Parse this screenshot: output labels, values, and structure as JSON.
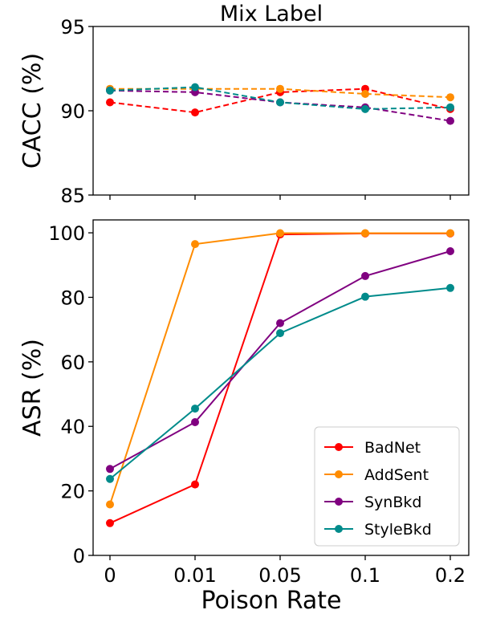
{
  "title": "Mix Label",
  "xlabel": "Poison Rate",
  "colors": {
    "BadNet": "#ff0000",
    "AddSent": "#ff8c00",
    "SynBkd": "#800080",
    "StyleBkd": "#008b8b"
  },
  "chart_data": [
    {
      "type": "line",
      "ylabel": "CACC (%)",
      "ylim": [
        85,
        95
      ],
      "yticks": [
        85,
        90,
        95
      ],
      "categories": [
        "0",
        "0.01",
        "0.05",
        "0.1",
        "0.2"
      ],
      "line_style": "dashed",
      "series": [
        {
          "name": "BadNet",
          "values": [
            90.5,
            89.9,
            91.1,
            91.3,
            90.1
          ]
        },
        {
          "name": "AddSent",
          "values": [
            91.3,
            91.3,
            91.3,
            91.0,
            90.8
          ]
        },
        {
          "name": "SynBkd",
          "values": [
            91.2,
            91.1,
            90.5,
            90.2,
            89.4
          ]
        },
        {
          "name": "StyleBkd",
          "values": [
            91.2,
            91.4,
            90.5,
            90.1,
            90.2
          ]
        }
      ]
    },
    {
      "type": "line",
      "ylabel": "ASR (%)",
      "ylim": [
        0,
        104
      ],
      "yticks": [
        0,
        20,
        40,
        60,
        80,
        100
      ],
      "categories": [
        "0",
        "0.01",
        "0.05",
        "0.1",
        "0.2"
      ],
      "line_style": "solid",
      "legend": "lower-right",
      "series": [
        {
          "name": "BadNet",
          "values": [
            10.0,
            22.0,
            99.5,
            99.8,
            99.8
          ]
        },
        {
          "name": "AddSent",
          "values": [
            15.8,
            96.5,
            99.9,
            99.9,
            99.9
          ]
        },
        {
          "name": "SynBkd",
          "values": [
            26.8,
            41.3,
            72.0,
            86.6,
            94.3
          ]
        },
        {
          "name": "StyleBkd",
          "values": [
            23.7,
            45.5,
            68.9,
            80.2,
            82.9
          ]
        }
      ]
    }
  ]
}
